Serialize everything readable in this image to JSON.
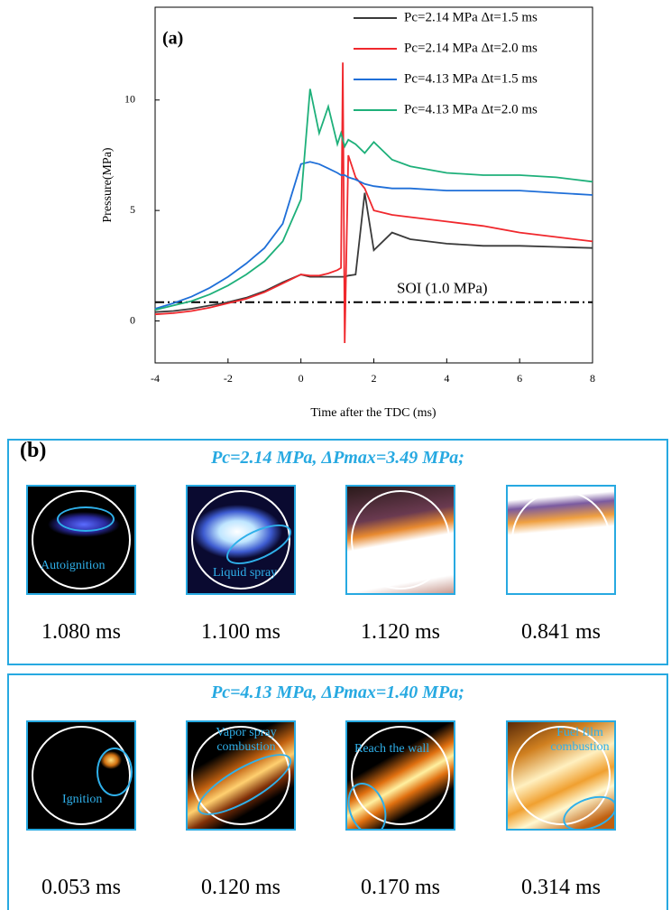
{
  "chart_data": {
    "type": "line",
    "panel_label": "(a)",
    "xlabel": "Time after the TDC (ms)",
    "ylabel": "Pressure(MPa)",
    "xlim": [
      -4,
      8
    ],
    "xticks": [
      -4,
      -2,
      0,
      2,
      4,
      6,
      8
    ],
    "ylim": [
      -1.9,
      14.2
    ],
    "yticks": [
      0,
      5,
      10
    ],
    "x": [
      -4,
      -3.5,
      -3,
      -2.5,
      -2,
      -1.5,
      -1,
      -0.5,
      0,
      0.25,
      0.5,
      0.75,
      1,
      1.1,
      1.15,
      1.2,
      1.3,
      1.5,
      1.75,
      2,
      2.5,
      3,
      4,
      5,
      6,
      7,
      8
    ],
    "series": [
      {
        "name": "Pc=2.14 MPa Δt=1.5 ms",
        "color": "#3a3a3a",
        "values": [
          0.4,
          0.45,
          0.55,
          0.7,
          0.85,
          1.05,
          1.35,
          1.75,
          2.1,
          2.0,
          2.0,
          2.0,
          2.0,
          2.0,
          2.0,
          2.0,
          2.05,
          2.1,
          5.8,
          3.2,
          4.0,
          3.7,
          3.5,
          3.4,
          3.4,
          3.35,
          3.3
        ]
      },
      {
        "name": "Pc=2.14 MPa Δt=2.0 ms",
        "color": "#f0282d",
        "values": [
          0.3,
          0.35,
          0.45,
          0.6,
          0.8,
          1.0,
          1.3,
          1.7,
          2.1,
          2.05,
          2.05,
          2.15,
          2.3,
          2.4,
          11.7,
          -1.0,
          7.5,
          6.5,
          6.0,
          5.0,
          4.8,
          4.7,
          4.5,
          4.3,
          4.0,
          3.8,
          3.6
        ]
      },
      {
        "name": "Pc=4.13 MPa Δt=1.5 ms",
        "color": "#1f6fd8",
        "values": [
          0.55,
          0.8,
          1.1,
          1.5,
          2.0,
          2.6,
          3.3,
          4.4,
          7.1,
          7.2,
          7.1,
          6.9,
          6.7,
          6.6,
          6.6,
          6.6,
          6.5,
          6.4,
          6.2,
          6.1,
          6.0,
          6.0,
          5.9,
          5.9,
          5.9,
          5.8,
          5.7
        ]
      },
      {
        "name": "Pc=4.13 MPa Δt=2.0 ms",
        "color": "#1eb07a",
        "values": [
          0.5,
          0.7,
          0.9,
          1.2,
          1.6,
          2.1,
          2.7,
          3.6,
          5.5,
          10.5,
          8.5,
          9.7,
          8.0,
          8.5,
          8.2,
          7.9,
          8.2,
          8.0,
          7.6,
          8.1,
          7.3,
          7.0,
          6.7,
          6.6,
          6.6,
          6.5,
          6.3
        ]
      }
    ],
    "reference_line": {
      "value": 0.85,
      "label": "SOI (1.0 MPa)",
      "color": "#000000"
    }
  },
  "figure_b": {
    "label": "(b)",
    "panels": [
      {
        "heading": "Pc=2.14 MPa, ΔPmax=3.49 MPa;",
        "images": [
          {
            "time": "1.080 ms",
            "annotation": "Autoignition"
          },
          {
            "time": "1.100 ms",
            "annotation": "Liquid spray"
          },
          {
            "time": "1.120 ms"
          },
          {
            "time": "0.841 ms"
          }
        ]
      },
      {
        "heading": "Pc=4.13 MPa, ΔPmax=1.40 MPa;",
        "images": [
          {
            "time": "0.053 ms",
            "annotation": "Ignition"
          },
          {
            "time": "0.120 ms",
            "annotation": "Vapor spray combustion"
          },
          {
            "time": "0.170 ms",
            "annotation": "Reach the wall"
          },
          {
            "time": "0.314 ms",
            "annotation": "Fuel film combustion"
          }
        ]
      }
    ]
  }
}
